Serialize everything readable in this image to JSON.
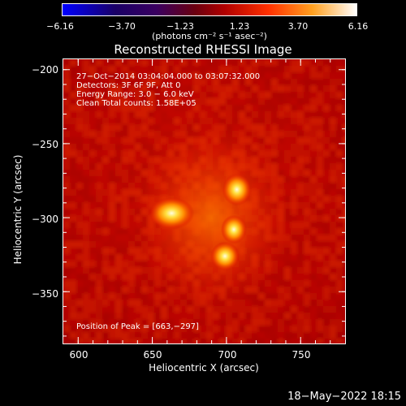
{
  "colorbar": {
    "tick_labels": [
      "−6.16",
      "−3.70",
      "−1.23",
      "1.23",
      "3.70",
      "6.16"
    ],
    "units_label": "(photons cm⁻² s⁻¹ asec⁻²)",
    "range": [
      -6.16,
      6.16
    ]
  },
  "chart_data": {
    "type": "heatmap",
    "title": "Reconstructed RHESSI Image",
    "xlabel": "Heliocentric X (arcsec)",
    "ylabel": "Heliocentric Y (arcsec)",
    "x_ticks": [
      "600",
      "650",
      "700",
      "750"
    ],
    "y_ticks": [
      "−200",
      "−250",
      "−300",
      "−350"
    ],
    "xlim": [
      590,
      780
    ],
    "ylim": [
      -385,
      -193
    ],
    "sources": [
      {
        "x": 663,
        "y": -297
      },
      {
        "x": 707,
        "y": -281
      },
      {
        "x": 705,
        "y": -308
      },
      {
        "x": 699,
        "y": -326
      }
    ],
    "annotations": [
      "27−Oct−2014 03:04:04.000 to 03:07:32.000",
      "Detectors: 3F 6F 9F, Att 0",
      "Energy Range: 3.0 − 6.0 keV",
      "Clean    Total counts: 1.58E+05"
    ],
    "peak_text": "Position of Peak = [663,−297]"
  },
  "timestamp": "18−May−2022 18:15"
}
